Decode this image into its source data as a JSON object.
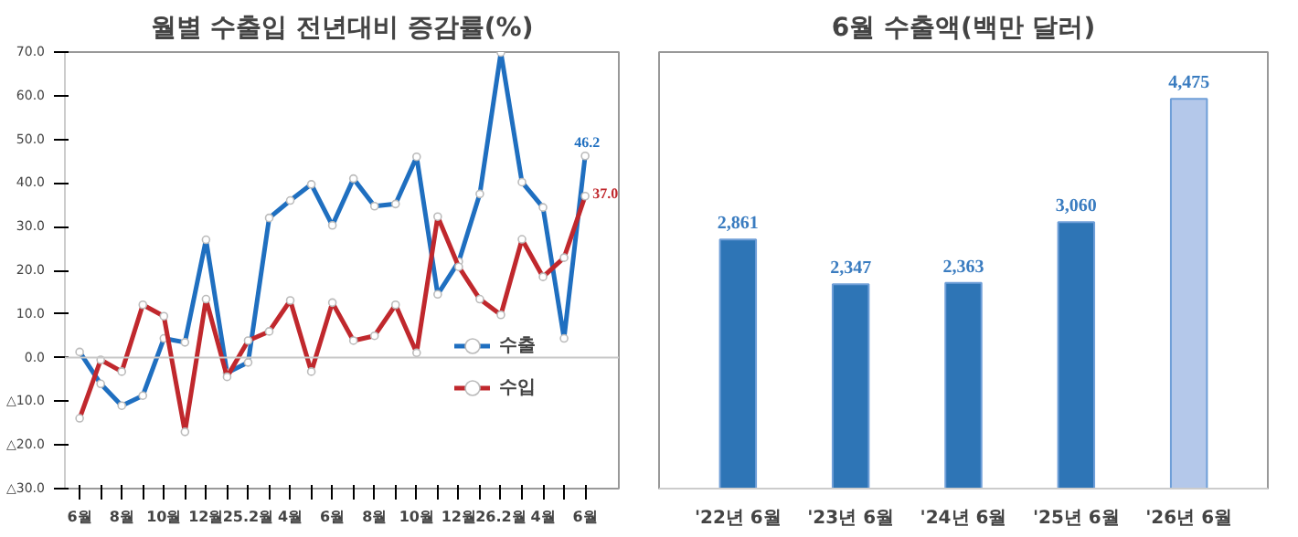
{
  "chart_data": [
    {
      "type": "line",
      "title": "월별 수출입 전년대비 증감률(%)",
      "categories": [
        "6월",
        null,
        "8월",
        null,
        "10월",
        null,
        "12월",
        null,
        "25.2월",
        null,
        "4월",
        null,
        "6월",
        null,
        "8월",
        null,
        "10월",
        null,
        "12월",
        null,
        "26.2월",
        null,
        "4월",
        null,
        "6월"
      ],
      "series": [
        {
          "name": "수출",
          "color": "#1f6fc0",
          "values": [
            1.3,
            -6,
            -11,
            -8.7,
            4.4,
            3.5,
            27,
            -3.5,
            -1.1,
            32,
            36,
            39.7,
            30.3,
            41,
            34.7,
            35.2,
            46,
            14.5,
            22.0,
            37.5,
            69.9,
            40.2,
            34.4,
            4.4,
            46.2
          ],
          "value_labels": [
            null,
            null,
            null,
            null,
            null,
            null,
            null,
            null,
            null,
            null,
            null,
            null,
            null,
            null,
            null,
            null,
            null,
            null,
            null,
            null,
            null,
            null,
            null,
            null,
            "46.2"
          ]
        },
        {
          "name": "수입",
          "color": "#c0282d",
          "values": [
            -13.9,
            -0.5,
            -3.2,
            12.1,
            9.5,
            -17,
            13.4,
            -4.4,
            3.9,
            6,
            13.1,
            -3.2,
            12.6,
            3.9,
            5,
            12.1,
            1.1,
            32.3,
            20.8,
            13.4,
            9.8,
            27.1,
            18.5,
            22.9,
            37.0
          ],
          "value_labels": [
            null,
            null,
            null,
            null,
            null,
            null,
            null,
            null,
            null,
            null,
            null,
            null,
            null,
            null,
            null,
            null,
            null,
            null,
            null,
            null,
            null,
            null,
            null,
            null,
            "37.0"
          ]
        }
      ],
      "ylim": [
        -30,
        70
      ],
      "yticks": [
        {
          "value": -30,
          "label": "△30.0"
        },
        {
          "value": -20,
          "label": "△20.0"
        },
        {
          "value": -10,
          "label": "△10.0"
        },
        {
          "value": 0,
          "label": "0.0"
        },
        {
          "value": 10,
          "label": "10.0"
        },
        {
          "value": 20,
          "label": "20.0"
        },
        {
          "value": 30,
          "label": "30.0"
        },
        {
          "value": 40,
          "label": "40.0"
        },
        {
          "value": 50,
          "label": "50.0"
        },
        {
          "value": 60,
          "label": "60.0"
        },
        {
          "value": 70,
          "label": "70.0"
        }
      ],
      "ref_lines": [
        {
          "axis": "y",
          "value": 0,
          "color": "#c8c8c8"
        }
      ],
      "marker": "circle",
      "line_style": "solid",
      "grid": false,
      "legend": "bottom right"
    },
    {
      "type": "bar",
      "title": "6월 수출액(백만 달러)",
      "categories": [
        "'22년 6월",
        "'23년 6월",
        "'24년 6월",
        "'25년 6월",
        "'26년 6월"
      ],
      "values": [
        2861,
        2347,
        2363,
        3060,
        4475
      ],
      "value_labels": [
        "2,861",
        "2,347",
        "2,363",
        "3,060",
        "4,475"
      ],
      "colors": [
        "#2e75b6",
        "#2e75b6",
        "#2e75b6",
        "#2e75b6",
        "#b4c8ea"
      ],
      "grid": false
    }
  ]
}
